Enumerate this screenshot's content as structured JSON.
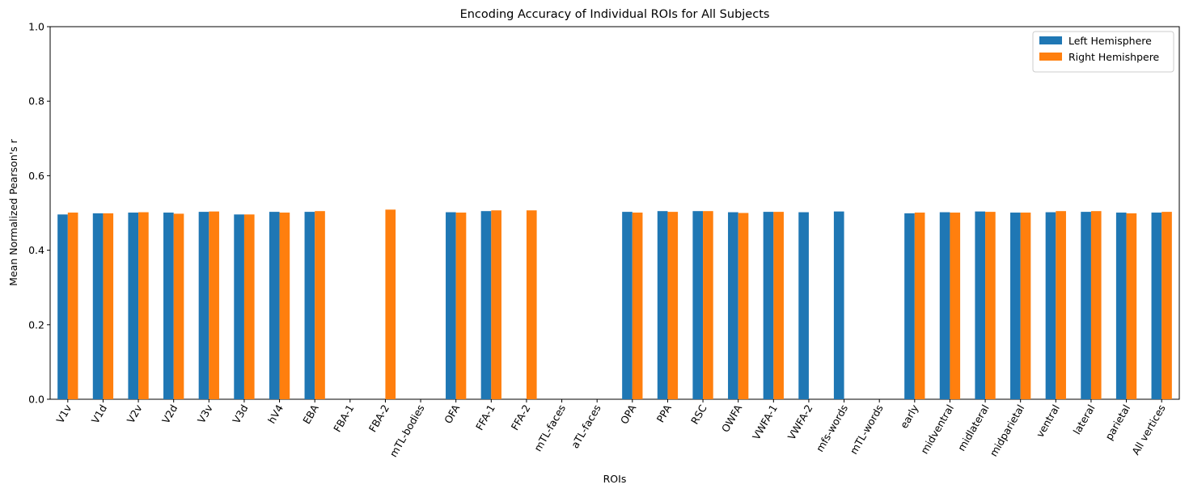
{
  "chart_data": {
    "type": "bar",
    "title": "Encoding Accuracy of Individual ROIs for All Subjects",
    "xlabel": "ROIs",
    "ylabel": "Mean Normalized Pearson's r",
    "ylim": [
      0,
      1.0
    ],
    "yticks": [
      "0.0",
      "0.2",
      "0.4",
      "0.6",
      "0.8",
      "1.0"
    ],
    "grid": false,
    "legend_position": "top-right",
    "categories": [
      "V1v",
      "V1d",
      "V2v",
      "V2d",
      "V3v",
      "V3d",
      "hV4",
      "EBA",
      "FBA-1",
      "FBA-2",
      "mTL-bodies",
      "OFA",
      "FFA-1",
      "FFA-2",
      "mTL-faces",
      "aTL-faces",
      "OPA",
      "PPA",
      "RSC",
      "OWFA",
      "VWFA-1",
      "VWFA-2",
      "mfs-words",
      "mTL-words",
      "early",
      "midventral",
      "midlateral",
      "midparietal",
      "ventral",
      "lateral",
      "parietal",
      "All vertices"
    ],
    "series": [
      {
        "name": "Left Hemisphere",
        "color": "#1f77b4",
        "values": [
          0.496,
          0.499,
          0.501,
          0.501,
          0.503,
          0.496,
          0.503,
          0.503,
          null,
          null,
          null,
          0.502,
          0.505,
          null,
          null,
          null,
          0.503,
          0.505,
          0.505,
          0.502,
          0.503,
          0.502,
          0.504,
          null,
          0.499,
          0.502,
          0.504,
          0.501,
          0.502,
          0.503,
          0.501,
          0.501
        ]
      },
      {
        "name": "Right Hemishpere",
        "color": "#ff7f0e",
        "values": [
          0.501,
          0.499,
          0.502,
          0.498,
          0.504,
          0.496,
          0.501,
          0.505,
          null,
          0.509,
          null,
          0.501,
          0.507,
          0.507,
          null,
          null,
          0.501,
          0.503,
          0.505,
          0.5,
          0.503,
          null,
          null,
          null,
          0.501,
          0.501,
          0.503,
          0.501,
          0.505,
          0.505,
          0.499,
          0.503
        ]
      }
    ]
  }
}
